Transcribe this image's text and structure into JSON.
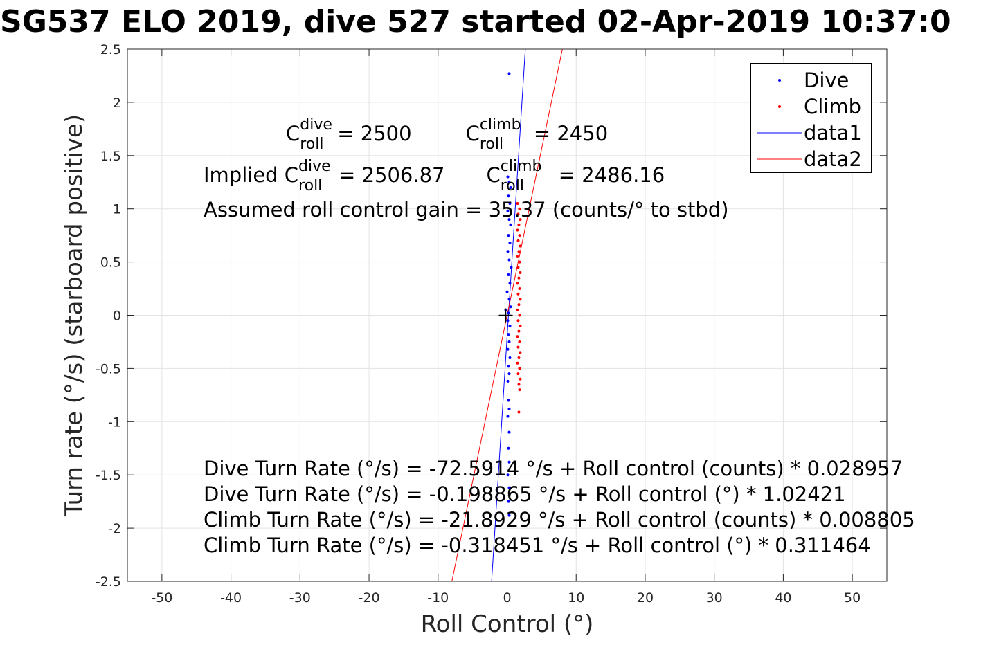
{
  "chart_data": {
    "type": "scatter",
    "title": "SG537 ELO 2019, dive 527 started 02-Apr-2019 10:37:0",
    "xlabel": "Roll Control (°)",
    "ylabel": "Turn rate (°/s) (starboard positive)",
    "xlim": [
      -55,
      55
    ],
    "ylim": [
      -2.5,
      2.5
    ],
    "grid": true,
    "legend_position": "top-right",
    "xticks": [
      -50,
      -40,
      -30,
      -20,
      -10,
      0,
      10,
      20,
      30,
      40,
      50
    ],
    "yticks": [
      -2.5,
      -2,
      -1.5,
      -1,
      -0.5,
      0,
      0.5,
      1,
      1.5,
      2,
      2.5
    ],
    "xtick_labels": [
      "-50",
      "-40",
      "-30",
      "-20",
      "-10",
      "0",
      "10",
      "20",
      "30",
      "40",
      "50"
    ],
    "ytick_labels": [
      "-2.5",
      "-2",
      "-1.5",
      "-1",
      "-0.5",
      "0",
      "0.5",
      "1",
      "1.5",
      "2",
      "2.5"
    ],
    "series": [
      {
        "name": "Dive",
        "kind": "points",
        "color": "#0000ff",
        "points": [
          [
            0.3,
            2.27
          ],
          [
            0.1,
            1.3
          ],
          [
            0.3,
            1.25
          ],
          [
            0.5,
            1.2
          ],
          [
            0.2,
            1.12
          ],
          [
            0.4,
            1.05
          ],
          [
            0.1,
            0.98
          ],
          [
            0.3,
            0.9
          ],
          [
            0.5,
            0.85
          ],
          [
            0.2,
            0.75
          ],
          [
            0.4,
            0.68
          ],
          [
            0.1,
            0.6
          ],
          [
            0.3,
            0.52
          ],
          [
            0.6,
            0.45
          ],
          [
            0.2,
            0.38
          ],
          [
            0.4,
            0.3
          ],
          [
            0.0,
            0.22
          ],
          [
            0.3,
            0.15
          ],
          [
            0.5,
            0.08
          ],
          [
            0.2,
            0.02
          ],
          [
            -0.2,
            0.05
          ],
          [
            0.1,
            -0.05
          ],
          [
            0.4,
            -0.1
          ],
          [
            0.2,
            -0.18
          ],
          [
            0.3,
            -0.25
          ],
          [
            0.1,
            -0.32
          ],
          [
            0.4,
            -0.4
          ],
          [
            0.2,
            -0.48
          ],
          [
            0.3,
            -0.55
          ],
          [
            0.1,
            -0.62
          ],
          [
            0.2,
            -0.8
          ],
          [
            0.3,
            -0.88
          ],
          [
            0.1,
            -0.95
          ],
          [
            0.3,
            -1.1
          ],
          [
            0.2,
            -1.25
          ],
          [
            0.3,
            -1.38
          ],
          [
            0.1,
            -1.5
          ],
          [
            0.3,
            -1.62
          ],
          [
            0.2,
            -1.75
          ],
          [
            0.3,
            -1.88
          ]
        ]
      },
      {
        "name": "Climb",
        "kind": "points",
        "color": "#ff0000",
        "points": [
          [
            1.5,
            1.05
          ],
          [
            1.8,
            1.0
          ],
          [
            1.6,
            0.95
          ],
          [
            1.9,
            0.9
          ],
          [
            1.7,
            0.85
          ],
          [
            1.5,
            0.8
          ],
          [
            1.8,
            0.75
          ],
          [
            1.6,
            0.7
          ],
          [
            1.9,
            0.65
          ],
          [
            1.7,
            0.6
          ],
          [
            1.5,
            0.55
          ],
          [
            1.8,
            0.5
          ],
          [
            1.6,
            0.45
          ],
          [
            1.9,
            0.4
          ],
          [
            1.7,
            0.35
          ],
          [
            1.5,
            0.3
          ],
          [
            1.8,
            0.25
          ],
          [
            1.6,
            0.2
          ],
          [
            1.9,
            0.15
          ],
          [
            1.7,
            0.1
          ],
          [
            1.5,
            0.05
          ],
          [
            1.8,
            0.0
          ],
          [
            1.6,
            -0.05
          ],
          [
            1.9,
            -0.1
          ],
          [
            1.7,
            -0.15
          ],
          [
            1.5,
            -0.2
          ],
          [
            1.8,
            -0.25
          ],
          [
            1.6,
            -0.3
          ],
          [
            1.9,
            -0.35
          ],
          [
            1.7,
            -0.4
          ],
          [
            1.5,
            -0.45
          ],
          [
            1.8,
            -0.5
          ],
          [
            1.6,
            -0.55
          ],
          [
            1.9,
            -0.6
          ],
          [
            1.7,
            -0.65
          ],
          [
            1.8,
            -0.7
          ],
          [
            1.7,
            -0.91
          ]
        ]
      },
      {
        "name": "data1",
        "kind": "line",
        "color": "#0000ff",
        "points": [
          [
            -2.247,
            -2.5
          ],
          [
            2.635,
            2.5
          ]
        ]
      },
      {
        "name": "data2",
        "kind": "line",
        "color": "#ff0000",
        "points": [
          [
            -8.0,
            -2.5
          ],
          [
            8.0,
            2.5
          ]
        ]
      }
    ],
    "origin_marker": [
      -0.2,
      0.0
    ],
    "annotations": {
      "c_roll_label": "C",
      "roll_sub": "roll",
      "dive_sup": "dive",
      "climb_sup": "climb",
      "c_dive_value": "= 2500",
      "c_climb_value": "= 2450",
      "implied_prefix": "Implied C",
      "implied_dive_value": "= 2506.87",
      "implied_climb_value": "= 2486.16",
      "gain_line": "Assumed roll control gain = 35.37 (counts/° to stbd)",
      "fit_lines": [
        "Dive Turn Rate (°/s) = -72.5914 °/s + Roll control (counts) * 0.028957",
        "Dive Turn Rate (°/s) = -0.198865 °/s + Roll control (°) * 1.02421",
        "Climb Turn Rate (°/s) = -21.8929 °/s + Roll control (counts) * 0.008805",
        "Climb Turn Rate (°/s) = -0.318451 °/s + Roll control (°) * 0.311464"
      ]
    }
  }
}
